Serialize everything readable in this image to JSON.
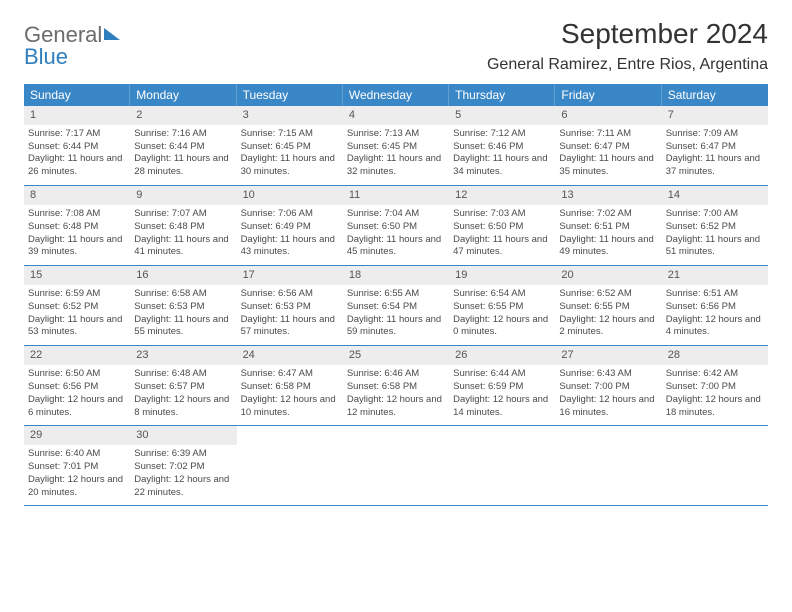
{
  "logo": {
    "text1": "General",
    "text2": "Blue"
  },
  "header": {
    "month_title": "September 2024",
    "location": "General Ramirez, Entre Rios, Argentina"
  },
  "colors": {
    "header_bg": "#3a87c8",
    "header_text": "#ffffff",
    "daynum_bg": "#ededed",
    "border": "#3a87c8",
    "body_text": "#4a4a4a"
  },
  "weekdays": [
    "Sunday",
    "Monday",
    "Tuesday",
    "Wednesday",
    "Thursday",
    "Friday",
    "Saturday"
  ],
  "weeks": [
    [
      {
        "n": "1",
        "sr": "7:17 AM",
        "ss": "6:44 PM",
        "dl": "11 hours and 26 minutes."
      },
      {
        "n": "2",
        "sr": "7:16 AM",
        "ss": "6:44 PM",
        "dl": "11 hours and 28 minutes."
      },
      {
        "n": "3",
        "sr": "7:15 AM",
        "ss": "6:45 PM",
        "dl": "11 hours and 30 minutes."
      },
      {
        "n": "4",
        "sr": "7:13 AM",
        "ss": "6:45 PM",
        "dl": "11 hours and 32 minutes."
      },
      {
        "n": "5",
        "sr": "7:12 AM",
        "ss": "6:46 PM",
        "dl": "11 hours and 34 minutes."
      },
      {
        "n": "6",
        "sr": "7:11 AM",
        "ss": "6:47 PM",
        "dl": "11 hours and 35 minutes."
      },
      {
        "n": "7",
        "sr": "7:09 AM",
        "ss": "6:47 PM",
        "dl": "11 hours and 37 minutes."
      }
    ],
    [
      {
        "n": "8",
        "sr": "7:08 AM",
        "ss": "6:48 PM",
        "dl": "11 hours and 39 minutes."
      },
      {
        "n": "9",
        "sr": "7:07 AM",
        "ss": "6:48 PM",
        "dl": "11 hours and 41 minutes."
      },
      {
        "n": "10",
        "sr": "7:06 AM",
        "ss": "6:49 PM",
        "dl": "11 hours and 43 minutes."
      },
      {
        "n": "11",
        "sr": "7:04 AM",
        "ss": "6:50 PM",
        "dl": "11 hours and 45 minutes."
      },
      {
        "n": "12",
        "sr": "7:03 AM",
        "ss": "6:50 PM",
        "dl": "11 hours and 47 minutes."
      },
      {
        "n": "13",
        "sr": "7:02 AM",
        "ss": "6:51 PM",
        "dl": "11 hours and 49 minutes."
      },
      {
        "n": "14",
        "sr": "7:00 AM",
        "ss": "6:52 PM",
        "dl": "11 hours and 51 minutes."
      }
    ],
    [
      {
        "n": "15",
        "sr": "6:59 AM",
        "ss": "6:52 PM",
        "dl": "11 hours and 53 minutes."
      },
      {
        "n": "16",
        "sr": "6:58 AM",
        "ss": "6:53 PM",
        "dl": "11 hours and 55 minutes."
      },
      {
        "n": "17",
        "sr": "6:56 AM",
        "ss": "6:53 PM",
        "dl": "11 hours and 57 minutes."
      },
      {
        "n": "18",
        "sr": "6:55 AM",
        "ss": "6:54 PM",
        "dl": "11 hours and 59 minutes."
      },
      {
        "n": "19",
        "sr": "6:54 AM",
        "ss": "6:55 PM",
        "dl": "12 hours and 0 minutes."
      },
      {
        "n": "20",
        "sr": "6:52 AM",
        "ss": "6:55 PM",
        "dl": "12 hours and 2 minutes."
      },
      {
        "n": "21",
        "sr": "6:51 AM",
        "ss": "6:56 PM",
        "dl": "12 hours and 4 minutes."
      }
    ],
    [
      {
        "n": "22",
        "sr": "6:50 AM",
        "ss": "6:56 PM",
        "dl": "12 hours and 6 minutes."
      },
      {
        "n": "23",
        "sr": "6:48 AM",
        "ss": "6:57 PM",
        "dl": "12 hours and 8 minutes."
      },
      {
        "n": "24",
        "sr": "6:47 AM",
        "ss": "6:58 PM",
        "dl": "12 hours and 10 minutes."
      },
      {
        "n": "25",
        "sr": "6:46 AM",
        "ss": "6:58 PM",
        "dl": "12 hours and 12 minutes."
      },
      {
        "n": "26",
        "sr": "6:44 AM",
        "ss": "6:59 PM",
        "dl": "12 hours and 14 minutes."
      },
      {
        "n": "27",
        "sr": "6:43 AM",
        "ss": "7:00 PM",
        "dl": "12 hours and 16 minutes."
      },
      {
        "n": "28",
        "sr": "6:42 AM",
        "ss": "7:00 PM",
        "dl": "12 hours and 18 minutes."
      }
    ],
    [
      {
        "n": "29",
        "sr": "6:40 AM",
        "ss": "7:01 PM",
        "dl": "12 hours and 20 minutes."
      },
      {
        "n": "30",
        "sr": "6:39 AM",
        "ss": "7:02 PM",
        "dl": "12 hours and 22 minutes."
      },
      null,
      null,
      null,
      null,
      null
    ]
  ],
  "labels": {
    "sunrise_prefix": "Sunrise: ",
    "sunset_prefix": "Sunset: ",
    "daylight_prefix": "Daylight: "
  }
}
